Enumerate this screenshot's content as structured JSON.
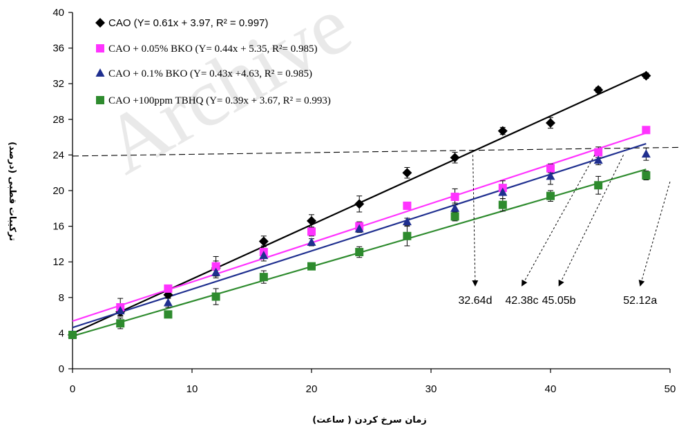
{
  "chart_data": {
    "type": "scatter",
    "xlabel": "زمان سرخ کردن ( ساعت)",
    "ylabel": "ترکیبات قطبی (درصد)",
    "xlim": [
      0,
      50
    ],
    "ylim": [
      0,
      40
    ],
    "x_ticks": [
      "0",
      "10",
      "20",
      "30",
      "40",
      "50"
    ],
    "y_ticks": [
      "0",
      "4",
      "8",
      "12",
      "16",
      "20",
      "24",
      "28",
      "32",
      "36",
      "40"
    ],
    "grid": false,
    "legend_position": "top-left",
    "watermark": "Archive",
    "series": [
      {
        "name": "CAO (Y= 0.61x + 3.97, R² = 0.997)",
        "marker": "diamond",
        "color": "#000000",
        "x": [
          0,
          4,
          8,
          12,
          16,
          20,
          24,
          28,
          32,
          36,
          40,
          44,
          48
        ],
        "y": [
          3.8,
          6.4,
          8.3,
          11.3,
          14.3,
          16.6,
          18.5,
          22.0,
          23.7,
          26.7,
          27.6,
          31.3,
          32.9
        ],
        "err": [
          0.4,
          0.5,
          0.3,
          0.8,
          0.6,
          0.7,
          0.9,
          0.6,
          0.6,
          0.4,
          0.6,
          0.3,
          0.3
        ],
        "fit": [
          0.61,
          3.97
        ]
      },
      {
        "name": "CAO + 0.05% BKO (Y= 0.44x + 5.35, R²= 0.985)",
        "marker": "square",
        "color": "#ff33ff",
        "x": [
          0,
          4,
          8,
          12,
          16,
          20,
          24,
          28,
          32,
          36,
          40,
          44,
          48
        ],
        "y": [
          3.8,
          6.9,
          9.0,
          11.5,
          13.1,
          15.4,
          16.0,
          18.3,
          19.3,
          20.3,
          22.5,
          24.3,
          26.8
        ],
        "err": [
          0.4,
          1.0,
          0.3,
          1.1,
          0.7,
          0.5,
          0.5,
          0.4,
          0.9,
          0.8,
          0.5,
          0.6,
          0.3
        ],
        "fit": [
          0.44,
          5.35
        ]
      },
      {
        "name": "CAO + 0.1% BKO  (Y= 0.43x +4.63, R² = 0.985)",
        "marker": "triangle",
        "color": "#1f2f8f",
        "x": [
          0,
          4,
          8,
          12,
          16,
          20,
          24,
          28,
          32,
          36,
          40,
          44,
          48
        ],
        "y": [
          3.9,
          6.5,
          7.4,
          10.8,
          12.7,
          14.2,
          15.7,
          16.5,
          18.0,
          19.8,
          21.6,
          23.4,
          24.1
        ],
        "err": [
          0.3,
          0.5,
          0.5,
          0.6,
          0.6,
          0.4,
          0.4,
          0.4,
          0.6,
          0.7,
          0.9,
          0.5,
          0.7
        ],
        "fit": [
          0.43,
          4.63
        ]
      },
      {
        "name": "CAO +100ppm TBHQ  (Y= 0.39x + 3.67, R² = 0.993)",
        "marker": "square",
        "color": "#2e8b2e",
        "x": [
          0,
          4,
          8,
          12,
          16,
          20,
          24,
          28,
          32,
          36,
          40,
          44,
          48
        ],
        "y": [
          3.8,
          5.1,
          6.1,
          8.1,
          10.3,
          11.5,
          13.1,
          14.9,
          17.1,
          18.4,
          19.4,
          20.6,
          21.7
        ],
        "err": [
          0.3,
          0.6,
          0.4,
          0.9,
          0.7,
          0.3,
          0.6,
          1.1,
          0.5,
          0.7,
          0.6,
          1.0,
          0.5
        ],
        "fit": [
          0.39,
          3.67
        ]
      }
    ],
    "threshold_line": {
      "y": 24.0,
      "style": "dashed"
    },
    "annotations": [
      {
        "text": "32.64d",
        "at_x": 33.5,
        "at_y": 24.0,
        "label_x": 33.7
      },
      {
        "text": "42.38c",
        "at_x": 43.7,
        "at_y": 24.0,
        "label_x": 37.6
      },
      {
        "text": "45.05b",
        "at_x": 46.1,
        "at_y": 24.0,
        "label_x": 40.7
      },
      {
        "text": "52.12a",
        "at_x": 50.0,
        "at_y": 21.0,
        "label_x": 47.5
      }
    ]
  }
}
